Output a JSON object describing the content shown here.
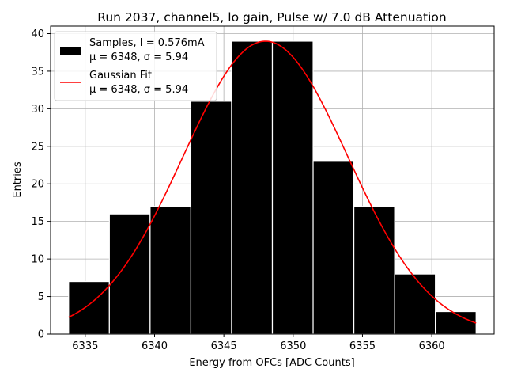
{
  "chart_data": {
    "type": "bar",
    "title": "Run 2037, channel5, lo gain, Pulse w/ 7.0 dB Attenuation",
    "xlabel": "Energy from OFCs [ADC Counts]",
    "ylabel": "Entries",
    "xlim": [
      6332.5,
      6364.5
    ],
    "ylim": [
      0,
      41
    ],
    "grid": true,
    "bins": [
      {
        "left": 6333.8,
        "right": 6336.74,
        "count": 7
      },
      {
        "left": 6336.74,
        "right": 6339.68,
        "count": 16
      },
      {
        "left": 6339.68,
        "right": 6342.62,
        "count": 17
      },
      {
        "left": 6342.62,
        "right": 6345.56,
        "count": 31
      },
      {
        "left": 6345.56,
        "right": 6348.5,
        "count": 39
      },
      {
        "left": 6348.5,
        "right": 6351.44,
        "count": 39
      },
      {
        "left": 6351.44,
        "right": 6354.38,
        "count": 23
      },
      {
        "left": 6354.38,
        "right": 6357.32,
        "count": 17
      },
      {
        "left": 6357.32,
        "right": 6360.26,
        "count": 8
      },
      {
        "left": 6360.26,
        "right": 6363.2,
        "count": 3
      }
    ],
    "fit": {
      "type": "gaussian",
      "amplitude": 39,
      "mu": 6348,
      "sigma": 5.94,
      "x_range": [
        6333.8,
        6363.2
      ]
    },
    "x_ticks": [
      6335,
      6340,
      6345,
      6350,
      6355,
      6360
    ],
    "y_ticks": [
      0,
      5,
      10,
      15,
      20,
      25,
      30,
      35,
      40
    ],
    "legend": {
      "placement": "top-left",
      "entries": [
        {
          "kind": "patch",
          "color": "#000000",
          "line1": "Samples, I = 0.576mA",
          "line2": "μ = 6348, σ = 5.94"
        },
        {
          "kind": "line",
          "color": "#ff0000",
          "line1": "Gaussian Fit",
          "line2": "μ = 6348, σ = 5.94"
        }
      ]
    },
    "colors": {
      "bar": "#000000",
      "bar_edge": "#ffffff",
      "fit": "#ff0000",
      "grid": "#b0b0b0"
    }
  }
}
